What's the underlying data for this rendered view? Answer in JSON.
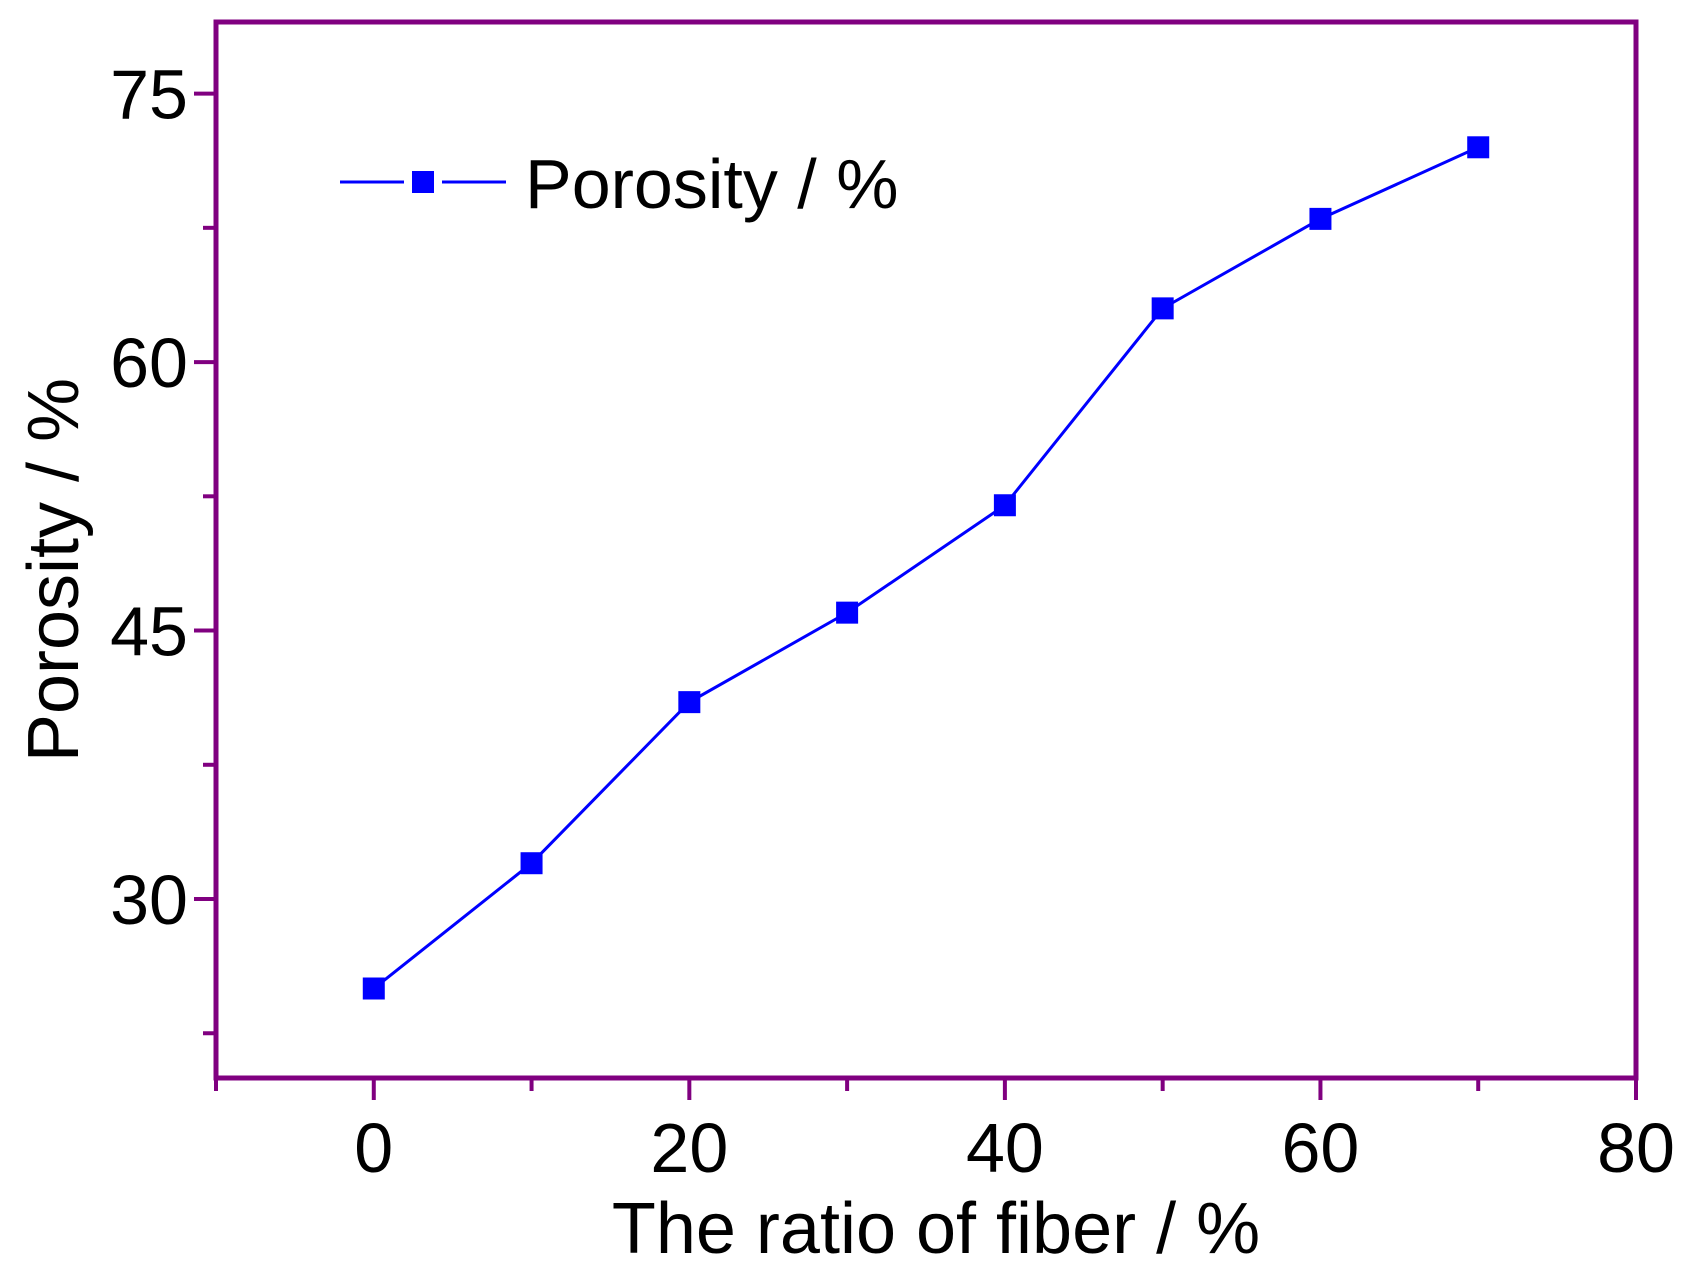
{
  "chart_data": {
    "type": "line",
    "title": "",
    "xlabel": "The ratio of fiber / %",
    "ylabel": "Porosity / %",
    "xlim": [
      -10,
      80
    ],
    "ylim": [
      20,
      79
    ],
    "x_ticks": [
      0,
      20,
      40,
      60,
      80
    ],
    "x_minor_ticks": [
      -10,
      10,
      30,
      50,
      70
    ],
    "y_ticks": [
      30,
      45,
      60,
      75
    ],
    "y_minor_ticks": [
      22.5,
      37.5,
      52.5,
      67.5
    ],
    "grid": false,
    "legend": {
      "position": "top-left",
      "entries": [
        "Porosity / %"
      ]
    },
    "series": [
      {
        "name": "Porosity / %",
        "marker": "square",
        "color": "#0000ff",
        "x": [
          0,
          10,
          20,
          30,
          40,
          50,
          60,
          70
        ],
        "y": [
          25,
          32,
          41,
          46,
          52,
          63,
          68,
          72
        ]
      }
    ],
    "frame_color": "#800080"
  }
}
